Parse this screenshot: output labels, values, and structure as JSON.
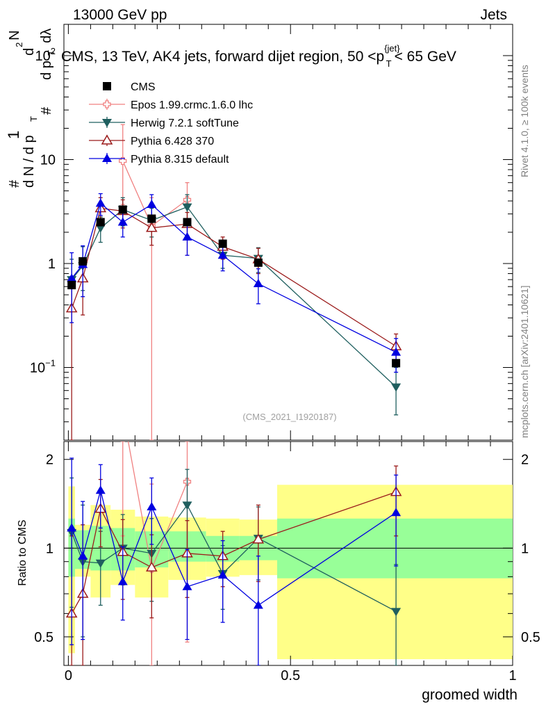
{
  "header": {
    "left": "13000 GeV pp",
    "right": "Jets"
  },
  "side_labels": {
    "rivet": "Rivet 4.1.0, ≥ 100k events",
    "mcplots": "mcplots.cern.ch [arXiv:2401.10621]"
  },
  "watermark": "(CMS_2021_I1920187)",
  "colors": {
    "cms": "#000000",
    "epos": "#f08080",
    "herwig": "#1f5f5f",
    "pythia6": "#9b1b1b",
    "pythia8": "#0000e0",
    "band_yellow": "#ffff88",
    "band_green": "#98ff98"
  },
  "chart_data": [
    {
      "type": "line",
      "title": "CMS, 13 TeV, AK4 jets, forward dijet region, 50 < p_T^{jet} < 65 GeV",
      "title_parts": {
        "main": "CMS, 13 TeV, AK4 jets, forward dijet region, 50 <p",
        "sub": "T",
        "sup": "{jet}",
        "end": "< 65 GeV"
      },
      "ylabel": "1/dN/dp_T  d²N/dp_T dλ",
      "ylabel_parts": {
        "one": "1",
        "hash": "#",
        "den": "d N / d p",
        "den_sub": "T",
        "numer": "d",
        "numer2": "N",
        "numer_sup": "2",
        "numer_den": "d p",
        "numer_den_sub": "T",
        "numer_den2": "dλ"
      },
      "yscale": "log",
      "ylim": [
        0.02,
        200
      ],
      "xlim": [
        -0.01,
        1.0
      ],
      "ytick_labels": [
        {
          "value": 0.1,
          "base": "10",
          "exp": "−1"
        },
        {
          "value": 1,
          "base": "1",
          "exp": ""
        },
        {
          "value": 10,
          "base": "10",
          "exp": ""
        },
        {
          "value": 100,
          "base": "10",
          "exp": "2"
        }
      ],
      "x": [
        0.0075,
        0.0325,
        0.0725,
        0.1225,
        0.1875,
        0.2675,
        0.3475,
        0.4275,
        0.7375
      ],
      "series": [
        {
          "name": "CMS",
          "key": "cms",
          "marker": "square",
          "values": [
            0.62,
            1.05,
            2.5,
            3.3,
            2.7,
            2.5,
            1.55,
            1.02,
            0.11
          ],
          "err": [
            0,
            0,
            0,
            0,
            0,
            0,
            0,
            0,
            0
          ]
        },
        {
          "name": "Epos 1.99.crmc.1.6.0 lhc",
          "key": "epos",
          "marker": "plus",
          "x": [
            0.1225,
            0.1875,
            0.2675
          ],
          "values": [
            9.7,
            2.3,
            4.1
          ],
          "err_lo": [
            6.0,
            2.28,
            2.9
          ],
          "err_hi": [
            12.0,
            2.0,
            1.9
          ]
        },
        {
          "name": "Herwig 7.2.1 softTune",
          "key": "herwig",
          "marker": "triangle-down",
          "values": [
            0.7,
            0.95,
            2.2,
            3.3,
            2.6,
            3.5,
            1.2,
            1.12,
            0.065
          ],
          "err_lo": [
            0.3,
            0.4,
            0.6,
            1.0,
            0.8,
            1.1,
            0.3,
            0.3,
            0.03
          ],
          "err_hi": [
            0.4,
            0.5,
            0.6,
            1.0,
            0.8,
            1.1,
            0.3,
            0.3,
            0.035
          ]
        },
        {
          "name": "Pythia 6.428 370",
          "key": "pythia6",
          "marker": "triangle-open",
          "values": [
            0.37,
            0.72,
            3.4,
            3.2,
            2.2,
            2.4,
            1.45,
            1.1,
            0.16
          ],
          "err_lo": [
            0.36,
            0.4,
            0.9,
            1.0,
            0.7,
            0.7,
            0.35,
            0.3,
            0.05
          ],
          "err_hi": [
            0.3,
            0.4,
            0.9,
            0.9,
            0.6,
            0.7,
            0.35,
            0.3,
            0.05
          ]
        },
        {
          "name": "Pythia 8.315 default",
          "key": "pythia8",
          "marker": "triangle-up",
          "values": [
            0.72,
            0.98,
            3.8,
            2.5,
            3.7,
            1.8,
            1.2,
            0.64,
            0.14
          ],
          "err_lo": [
            0.45,
            0.5,
            0.9,
            0.7,
            0.9,
            0.6,
            0.35,
            0.23,
            0.05
          ],
          "err_hi": [
            0.55,
            0.5,
            0.9,
            0.8,
            0.9,
            0.6,
            0.35,
            0.25,
            0.05
          ]
        }
      ]
    },
    {
      "type": "line",
      "ylabel": "Ratio to CMS",
      "xlabel": "groomed width",
      "ylim": [
        0.4,
        2.3
      ],
      "yscale": "log",
      "yticks": [
        0.5,
        1,
        2
      ],
      "ytick_labels": [
        "0.5",
        "1",
        "2"
      ],
      "xticks": [
        0,
        0.5,
        1
      ],
      "xtick_labels": [
        "0",
        "0.5",
        "1"
      ],
      "bands": [
        {
          "x0": 0.0,
          "x1": 0.015,
          "yellow": [
            0.44,
            1.62
          ],
          "green": [
            0.8,
            1.26
          ]
        },
        {
          "x0": 0.015,
          "x1": 0.05,
          "yellow": [
            0.8,
            1.2
          ],
          "green": [
            0.85,
            1.15
          ]
        },
        {
          "x0": 0.05,
          "x1": 0.095,
          "yellow": [
            0.68,
            1.4
          ],
          "green": [
            0.84,
            1.19
          ]
        },
        {
          "x0": 0.095,
          "x1": 0.15,
          "yellow": [
            0.75,
            1.35
          ],
          "green": [
            0.84,
            1.17
          ]
        },
        {
          "x0": 0.15,
          "x1": 0.225,
          "yellow": [
            0.68,
            1.28
          ],
          "green": [
            0.86,
            1.14
          ]
        },
        {
          "x0": 0.225,
          "x1": 0.31,
          "yellow": [
            0.78,
            1.27
          ],
          "green": [
            0.9,
            1.14
          ]
        },
        {
          "x0": 0.31,
          "x1": 0.385,
          "yellow": [
            0.8,
            1.26
          ],
          "green": [
            0.9,
            1.1
          ]
        },
        {
          "x0": 0.385,
          "x1": 0.47,
          "yellow": [
            0.81,
            1.25
          ],
          "green": [
            0.91,
            1.1
          ]
        },
        {
          "x0": 0.47,
          "x1": 1.0,
          "yellow": [
            0.42,
            1.64
          ],
          "green": [
            0.79,
            1.26
          ]
        }
      ],
      "series": [
        {
          "name": "Epos",
          "key": "epos",
          "x": [
            0.1225,
            0.1875,
            0.2675
          ],
          "values": [
            2.9,
            0.85,
            1.68
          ],
          "err_lo": [
            1.8,
            0.84,
            1.2
          ],
          "err_hi": [
            3.5,
            0.8,
            0.9
          ]
        },
        {
          "name": "Herwig",
          "key": "herwig",
          "values": [
            1.13,
            0.9,
            0.89,
            1.0,
            0.96,
            1.4,
            0.82,
            1.08,
            0.61
          ],
          "err_lo": [
            0.5,
            0.4,
            0.25,
            0.25,
            0.3,
            0.45,
            0.2,
            0.3,
            0.3
          ],
          "err_hi": [
            0.6,
            0.5,
            0.25,
            0.3,
            0.3,
            0.45,
            0.2,
            0.3,
            0.27
          ]
        },
        {
          "name": "Pythia 6",
          "key": "pythia6",
          "values": [
            0.6,
            0.7,
            1.36,
            0.97,
            0.86,
            0.96,
            0.94,
            1.07,
            1.55
          ],
          "err_lo": [
            0.59,
            0.4,
            0.35,
            0.3,
            0.28,
            0.28,
            0.2,
            0.3,
            0.45
          ],
          "err_hi": [
            0.5,
            0.5,
            0.35,
            0.28,
            0.25,
            0.28,
            0.2,
            0.33,
            0.35
          ]
        },
        {
          "name": "Pythia 8",
          "key": "pythia8",
          "values": [
            1.17,
            0.94,
            1.57,
            0.77,
            1.38,
            0.74,
            0.81,
            0.64,
            1.32
          ],
          "err_lo": [
            0.7,
            0.45,
            0.4,
            0.2,
            0.35,
            0.25,
            0.25,
            0.3,
            0.45
          ],
          "err_hi": [
            0.85,
            0.5,
            0.35,
            0.24,
            0.35,
            0.25,
            0.25,
            0.3,
            0.45
          ]
        }
      ]
    }
  ]
}
